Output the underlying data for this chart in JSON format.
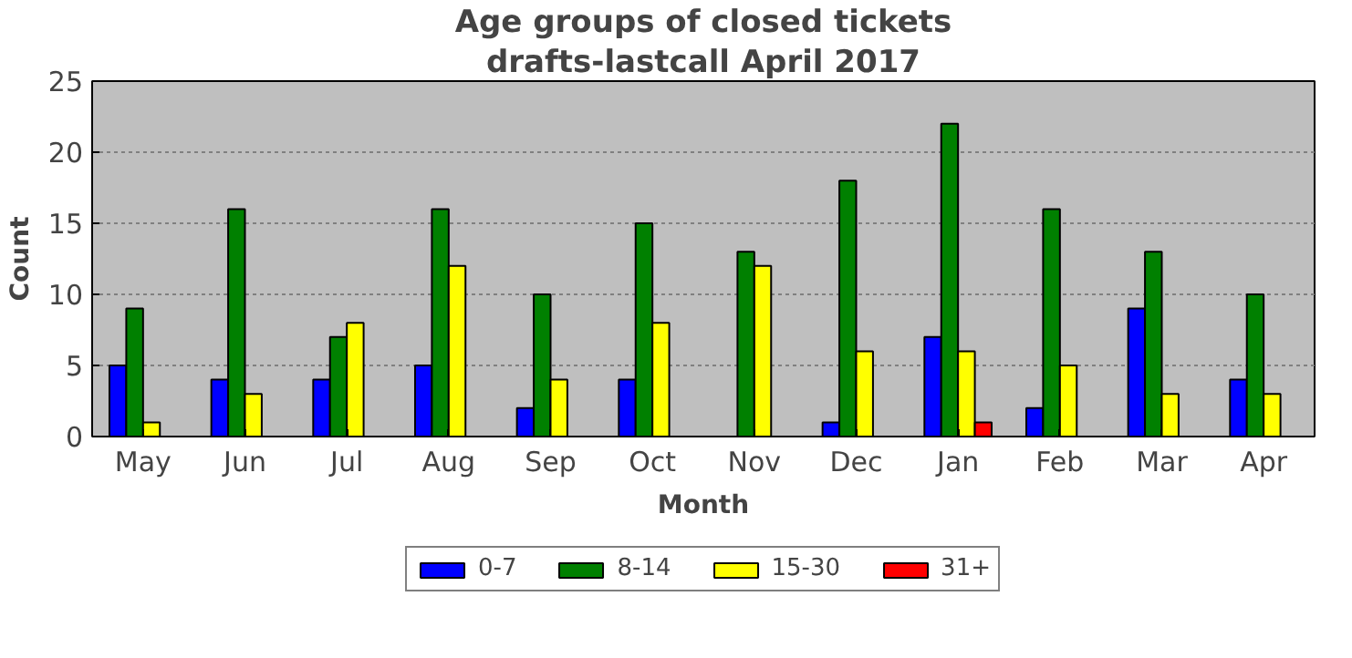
{
  "chart_data": {
    "type": "bar",
    "title": "Age groups of closed tickets",
    "subtitle": "drafts-lastcall April 2017",
    "xlabel": "Month",
    "ylabel": "Count",
    "categories": [
      "May",
      "Jun",
      "Jul",
      "Aug",
      "Sep",
      "Oct",
      "Nov",
      "Dec",
      "Jan",
      "Feb",
      "Mar",
      "Apr"
    ],
    "series": [
      {
        "name": "0-7",
        "color": "#0000ff",
        "values": [
          5,
          4,
          4,
          5,
          2,
          4,
          0,
          1,
          7,
          2,
          9,
          4
        ]
      },
      {
        "name": "8-14",
        "color": "#008000",
        "values": [
          9,
          16,
          7,
          16,
          10,
          15,
          13,
          18,
          22,
          16,
          13,
          10
        ]
      },
      {
        "name": "15-30",
        "color": "#ffff00",
        "values": [
          1,
          3,
          8,
          12,
          4,
          8,
          12,
          6,
          6,
          5,
          3,
          3
        ]
      },
      {
        "name": "31+",
        "color": "#ff0000",
        "values": [
          0,
          0,
          0,
          0,
          0,
          0,
          0,
          0,
          1,
          0,
          0,
          0
        ]
      }
    ],
    "ylim": [
      0,
      25
    ],
    "yticks": [
      0,
      5,
      10,
      15,
      20,
      25
    ],
    "grid": "y",
    "legend": "bottom"
  }
}
